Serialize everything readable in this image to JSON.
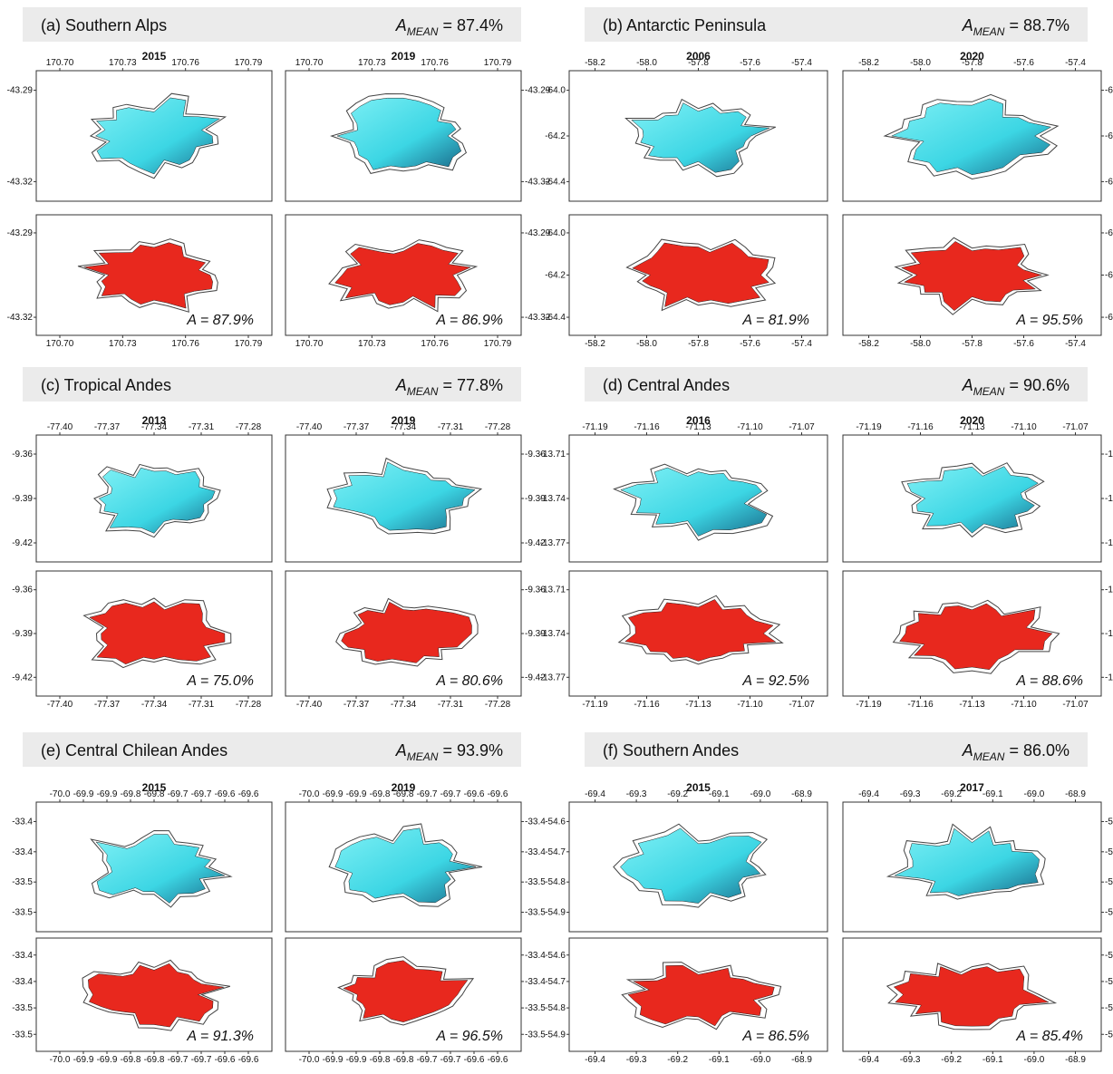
{
  "panels": [
    {
      "title": "(a) Southern Alps",
      "mean_symbol": "A",
      "mean_subscript": "MEAN",
      "mean_value": "= 87.4%",
      "years": [
        "2015",
        "2019"
      ],
      "xticks": [
        "170.70",
        "170.73",
        "170.76",
        "170.79"
      ],
      "yticks": [
        "-43.29",
        "-43.32"
      ],
      "accuracy": [
        "A = 87.9%",
        "A = 86.9%"
      ]
    },
    {
      "title": "(b) Antarctic Peninsula",
      "mean_symbol": "A",
      "mean_subscript": "MEAN",
      "mean_value": "= 88.7%",
      "years": [
        "2006",
        "2020"
      ],
      "xticks": [
        "-58.2",
        "-58.0",
        "-57.8",
        "-57.6",
        "-57.4"
      ],
      "yticks": [
        "-64.0",
        "-64.2",
        "-64.4"
      ],
      "accuracy": [
        "A = 81.9%",
        "A = 95.5%"
      ]
    },
    {
      "title": "(c) Tropical Andes",
      "mean_symbol": "A",
      "mean_subscript": "MEAN",
      "mean_value": "= 77.8%",
      "years": [
        "2013",
        "2019"
      ],
      "xticks": [
        "-77.40",
        "-77.37",
        "-77.34",
        "-77.31",
        "-77.28"
      ],
      "yticks": [
        "-9.36",
        "-9.39",
        "-9.42"
      ],
      "accuracy": [
        "A =  75.0%",
        "A = 80.6%"
      ]
    },
    {
      "title": "(d) Central Andes",
      "mean_symbol": "A",
      "mean_subscript": "MEAN",
      "mean_value": "= 90.6%",
      "years": [
        "2016",
        "2020"
      ],
      "xticks": [
        "-71.19",
        "-71.16",
        "-71.13",
        "-71.10",
        "-71.07"
      ],
      "yticks": [
        "-13.71",
        "-13.74",
        "-13.77"
      ],
      "accuracy": [
        "A = 92.5%",
        "A = 88.6%"
      ]
    },
    {
      "title": "(e) Central Chilean Andes",
      "mean_symbol": "A",
      "mean_subscript": "MEAN",
      "mean_value": "= 93.9%",
      "years": [
        "2015",
        "2019"
      ],
      "xticks": [
        "-70.0",
        "-69.9",
        "-69.9",
        "-69.8",
        "-69.8",
        "-69.7",
        "-69.7",
        "-69.6",
        "-69.6"
      ],
      "yticks": [
        "-33.4",
        "-33.4",
        "-33.5",
        "-33.5"
      ],
      "accuracy": [
        "A = 91.3%",
        "A = 96.5%"
      ]
    },
    {
      "title": "(f) Southern Andes",
      "mean_symbol": "A",
      "mean_subscript": "MEAN",
      "mean_value": "= 86.0%",
      "years": [
        "2015",
        "2017"
      ],
      "xticks": [
        "-69.4",
        "-69.3",
        "-69.2",
        "-69.1",
        "-69.0",
        "-68.9"
      ],
      "yticks": [
        "-54.6",
        "-54.7",
        "-54.8",
        "-54.9"
      ],
      "accuracy": [
        "A = 86.5%",
        "A = 85.4%"
      ]
    }
  ]
}
